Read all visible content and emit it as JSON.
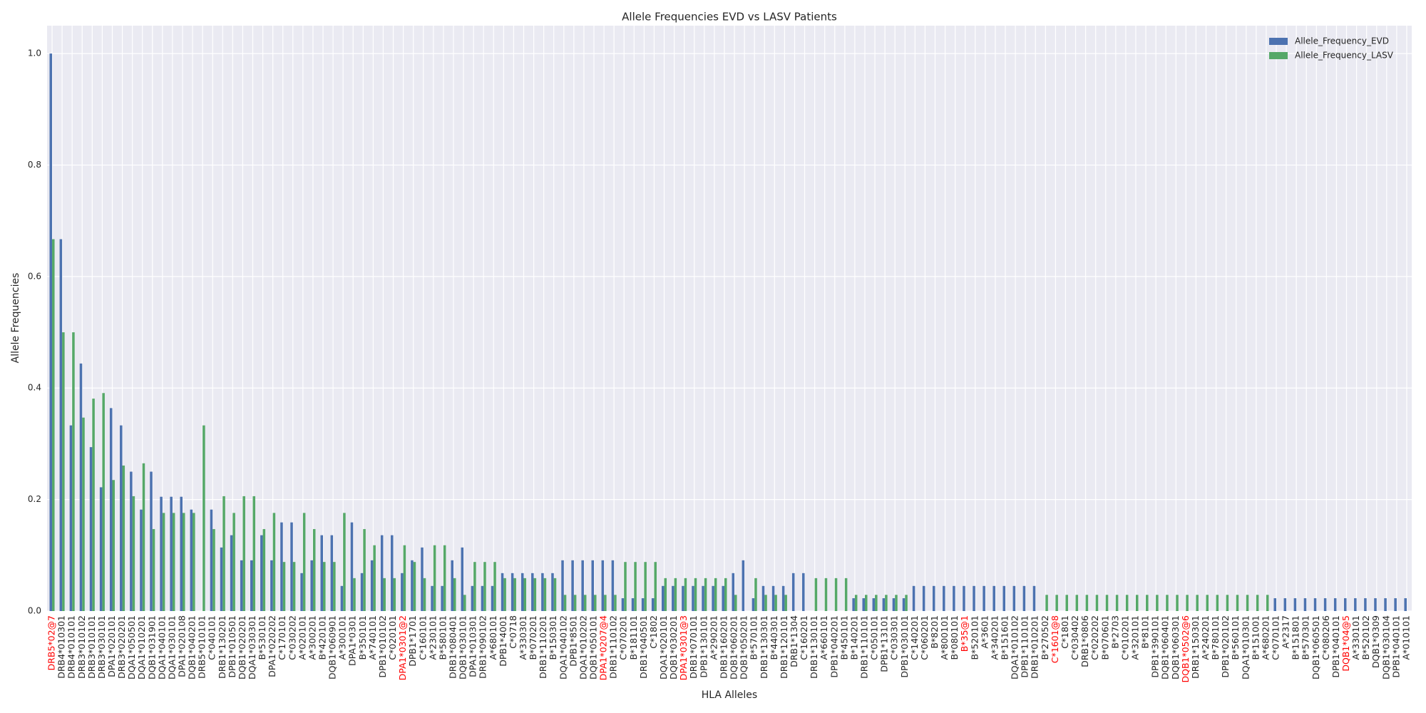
{
  "chart_data": {
    "type": "bar",
    "title": "Allele Frequencies EVD vs LASV Patients",
    "xlabel": "HLA Alleles",
    "ylabel": "Allele Frequencies",
    "categories": [
      "DRB5*02@7",
      "DRB4*010301",
      "DRB4*010101",
      "DRB3*010102",
      "DRB3*010101",
      "DRB3*030101",
      "DPA1*020101",
      "DRB3*020201",
      "DQA1*050501",
      "DQA1*010201",
      "DQB1*031901",
      "DQA1*040101",
      "DQA1*030101",
      "DPA1*020108",
      "DQB1*040201",
      "DRB5*010101",
      "C*040101",
      "DRB1*130201",
      "DPB1*010501",
      "DQB1*020201",
      "DQA1*030301",
      "B*530101",
      "DPA1*020202",
      "C*170101",
      "C*030202",
      "A*020101",
      "A*300201",
      "B*420101",
      "DQB1*060901",
      "A*300101",
      "DPA1*0301",
      "B*350101",
      "A*740101",
      "DPB1*010102",
      "C*020101",
      "DPA1*0301@2",
      "DPB1*1701",
      "C*160101",
      "A*230101",
      "B*580101",
      "DRB1*080401",
      "DQB1*030101",
      "DPA1*010301",
      "DRB1*090102",
      "A*680101",
      "DPB1*4001",
      "C*0718",
      "A*330301",
      "B*070201",
      "DRB1*110201",
      "B*150301",
      "DQA1*040102",
      "DPB1*8501",
      "DQA1*010202",
      "DQB1*050101",
      "DPA1*0207@4",
      "DRB1*110102",
      "C*070201",
      "B*181101",
      "DRB1*040501",
      "C*1802",
      "DQA1*020101",
      "DQB1*030201",
      "DPA1*0301@3",
      "DRB1*070101",
      "DPB1*130101",
      "A*290201",
      "DRB1*160201",
      "DQB1*060201",
      "DQB1*050201",
      "B*570101",
      "DRB1*130301",
      "B*440301",
      "DRB1*120101",
      "DRB1*1304",
      "C*160201",
      "DRB1*130101",
      "A*660101",
      "DPB1*040201",
      "B*450101",
      "B*140201",
      "DRB1*110101",
      "C*050101",
      "DPB1*13101",
      "C*030301",
      "DPB1*030101",
      "C*140201",
      "C*060201",
      "B*8201",
      "A*800101",
      "B*080101",
      "B*35@1",
      "B*520101",
      "A*3601",
      "A*340201",
      "B*151601",
      "DQA1*010102",
      "DPB1*110101",
      "DRB1*010201",
      "B*270502",
      "C*1601@8",
      "C*1801",
      "C*030402",
      "DRB1*0806",
      "C*020202",
      "B*070601",
      "B*2703",
      "C*010201",
      "A*320101",
      "B*8101",
      "DPB1*390101",
      "DQB1*060401",
      "DQB1*060301",
      "DQB1*0502@6",
      "DRB1*150301",
      "A*240201",
      "B*780101",
      "DPB1*020102",
      "B*560101",
      "DQA1*010301",
      "B*151001",
      "A*680201",
      "C*070101",
      "A*2317",
      "B*151801",
      "B*570301",
      "DQB1*060501",
      "C*080206",
      "DPB1*040101",
      "DQB1*04@5",
      "A*330101",
      "B*520102",
      "DQB1*0309",
      "DQB1*030104",
      "DPB1*040101",
      "A*010101"
    ],
    "series": [
      {
        "name": "Allele_Frequency_EVD",
        "color": "#4c72b0",
        "values": [
          1.0,
          0.667,
          0.333,
          0.444,
          0.294,
          0.222,
          0.364,
          0.333,
          0.25,
          0.182,
          0.25,
          0.205,
          0.205,
          0.205,
          0.182,
          0,
          0.182,
          0.114,
          0.136,
          0.091,
          0.091,
          0.136,
          0.091,
          0.159,
          0.159,
          0.068,
          0.091,
          0.136,
          0.136,
          0.045,
          0.159,
          0.068,
          0.091,
          0.136,
          0.136,
          0.068,
          0.091,
          0.114,
          0.045,
          0.045,
          0.091,
          0.114,
          0.045,
          0.045,
          0.045,
          0.068,
          0.068,
          0.068,
          0.068,
          0.068,
          0.068,
          0.091,
          0.091,
          0.091,
          0.091,
          0.091,
          0.091,
          0.023,
          0.023,
          0.023,
          0.023,
          0.045,
          0.045,
          0.045,
          0.045,
          0.045,
          0.045,
          0.045,
          0.068,
          0.091,
          0.023,
          0.045,
          0.045,
          0.045,
          0.068,
          0.068,
          0,
          0,
          0,
          0,
          0.023,
          0.023,
          0.023,
          0.023,
          0.023,
          0.023,
          0.045,
          0.045,
          0.045,
          0.045,
          0.045,
          0.045,
          0.045,
          0.045,
          0.045,
          0.045,
          0.045,
          0.045,
          0.045,
          0,
          0,
          0,
          0,
          0,
          0,
          0,
          0,
          0,
          0,
          0,
          0,
          0,
          0,
          0,
          0,
          0,
          0,
          0,
          0,
          0,
          0,
          0,
          0.023,
          0.023,
          0.023,
          0.023,
          0.023,
          0.023,
          0.023,
          0.023,
          0.023,
          0.023,
          0.023,
          0.023,
          0.023,
          0.023
        ]
      },
      {
        "name": "Allele_Frequency_LASV",
        "color": "#55a868",
        "values": [
          0.667,
          0.5,
          0.5,
          0.347,
          0.381,
          0.391,
          0.235,
          0.261,
          0.206,
          0.265,
          0.147,
          0.176,
          0.176,
          0.176,
          0.176,
          0.333,
          0.147,
          0.206,
          0.176,
          0.206,
          0.206,
          0.147,
          0.176,
          0.088,
          0.088,
          0.176,
          0.147,
          0.088,
          0.088,
          0.176,
          0.059,
          0.147,
          0.118,
          0.059,
          0.059,
          0.118,
          0.088,
          0.059,
          0.118,
          0.118,
          0.059,
          0.029,
          0.088,
          0.088,
          0.088,
          0.059,
          0.059,
          0.059,
          0.059,
          0.059,
          0.059,
          0.029,
          0.029,
          0.029,
          0.029,
          0.029,
          0.029,
          0.088,
          0.088,
          0.088,
          0.088,
          0.059,
          0.059,
          0.059,
          0.059,
          0.059,
          0.059,
          0.059,
          0.029,
          0,
          0.059,
          0.029,
          0.029,
          0.029,
          0,
          0,
          0.059,
          0.059,
          0.059,
          0.059,
          0.029,
          0.029,
          0.029,
          0.029,
          0.029,
          0.029,
          0,
          0,
          0,
          0,
          0,
          0,
          0,
          0,
          0,
          0,
          0,
          0,
          0,
          0.029,
          0.029,
          0.029,
          0.029,
          0.029,
          0.029,
          0.029,
          0.029,
          0.029,
          0.029,
          0.029,
          0.029,
          0.029,
          0.029,
          0.029,
          0.029,
          0.029,
          0.029,
          0.029,
          0.029,
          0.029,
          0.029,
          0.029,
          0,
          0,
          0,
          0,
          0,
          0,
          0,
          0,
          0,
          0,
          0,
          0,
          0,
          0
        ]
      }
    ],
    "highlighted_indices": [
      0,
      35,
      55,
      63,
      91,
      100,
      113,
      129
    ],
    "highlight_color": "#ff0000",
    "ylim": [
      0,
      1.05
    ],
    "yticks": [
      {
        "value": 0,
        "label": "0.0"
      },
      0.2,
      0.4,
      0.6,
      0.8,
      {
        "value": 1,
        "label": "1.0"
      }
    ],
    "grid": true,
    "legend": "upper right"
  }
}
